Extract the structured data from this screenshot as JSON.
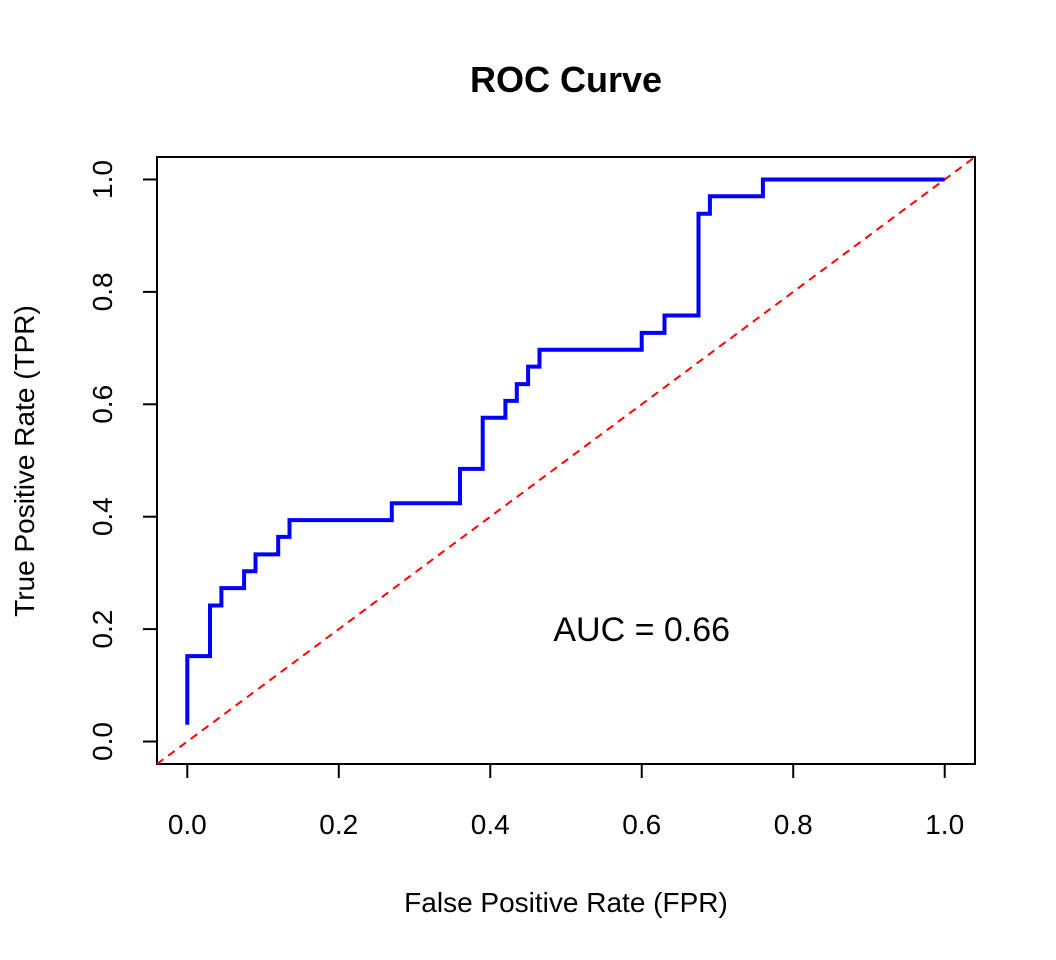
{
  "chart_data": {
    "type": "line",
    "title": "ROC Curve",
    "xlabel": "False Positive Rate (FPR)",
    "ylabel": "True Positive Rate (TPR)",
    "xlim": [
      -0.04,
      1.04
    ],
    "ylim": [
      -0.04,
      1.04
    ],
    "x_ticks": [
      0.0,
      0.2,
      0.4,
      0.6,
      0.8,
      1.0
    ],
    "x_tick_labels": [
      "0.0",
      "0.2",
      "0.4",
      "0.6",
      "0.8",
      "1.0"
    ],
    "y_ticks": [
      0.0,
      0.2,
      0.4,
      0.6,
      0.8,
      1.0
    ],
    "y_tick_labels": [
      "0.0",
      "0.2",
      "0.4",
      "0.6",
      "0.8",
      "1.0"
    ],
    "grid": false,
    "series": [
      {
        "color": "#0000ff",
        "x": [
          0.0,
          0.0,
          0.03,
          0.03,
          0.045,
          0.045,
          0.075,
          0.075,
          0.09,
          0.09,
          0.12,
          0.12,
          0.135,
          0.135,
          0.27,
          0.27,
          0.36,
          0.36,
          0.39,
          0.39,
          0.42,
          0.42,
          0.435,
          0.435,
          0.45,
          0.45,
          0.465,
          0.465,
          0.6,
          0.6,
          0.63,
          0.63,
          0.675,
          0.675,
          0.69,
          0.69,
          0.76,
          0.76,
          1.0
        ],
        "y": [
          0.03,
          0.152,
          0.152,
          0.242,
          0.242,
          0.273,
          0.273,
          0.303,
          0.303,
          0.333,
          0.333,
          0.364,
          0.364,
          0.394,
          0.394,
          0.424,
          0.424,
          0.485,
          0.485,
          0.576,
          0.576,
          0.606,
          0.606,
          0.636,
          0.636,
          0.667,
          0.667,
          0.697,
          0.697,
          0.727,
          0.727,
          0.758,
          0.758,
          0.939,
          0.939,
          0.97,
          0.97,
          1.0,
          1.0
        ]
      },
      {
        "color": "#ff0000",
        "style": "dashed",
        "x": [
          -0.04,
          1.04
        ],
        "y": [
          -0.04,
          1.04
        ]
      }
    ],
    "annotations": [
      {
        "text": "AUC = 0.66",
        "x": 0.6,
        "y": 0.2
      }
    ]
  }
}
